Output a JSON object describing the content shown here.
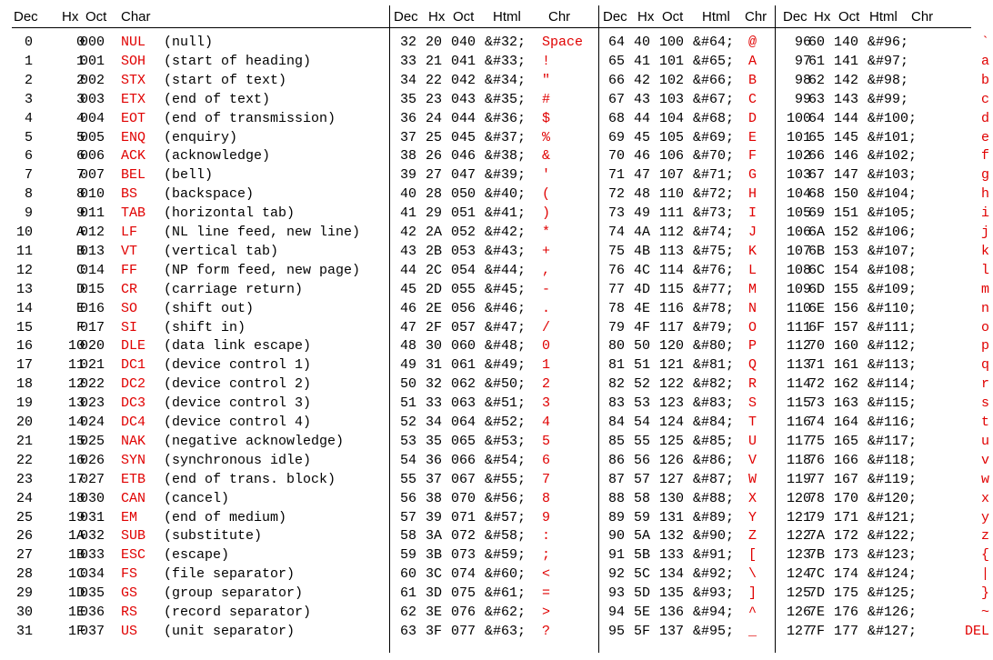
{
  "headers": {
    "s1": {
      "dec": "Dec",
      "hx": "Hx",
      "oct": "Oct",
      "char": "Char"
    },
    "s2": {
      "dec": "Dec",
      "hx": "Hx",
      "oct": "Oct",
      "html": "Html",
      "chr": "Chr"
    },
    "s3": {
      "dec": "Dec",
      "hx": "Hx",
      "oct": "Oct",
      "html": "Html",
      "chr": "Chr"
    },
    "s4": {
      "dec": "Dec",
      "hx": "Hx",
      "oct": "Oct",
      "html": "Html",
      "chr": "Chr"
    }
  },
  "control_rows": [
    {
      "dec": "0",
      "hx": "0",
      "oct": "000",
      "abbr": "NUL",
      "desc": "(null)"
    },
    {
      "dec": "1",
      "hx": "1",
      "oct": "001",
      "abbr": "SOH",
      "desc": "(start of heading)"
    },
    {
      "dec": "2",
      "hx": "2",
      "oct": "002",
      "abbr": "STX",
      "desc": "(start of text)"
    },
    {
      "dec": "3",
      "hx": "3",
      "oct": "003",
      "abbr": "ETX",
      "desc": "(end of text)"
    },
    {
      "dec": "4",
      "hx": "4",
      "oct": "004",
      "abbr": "EOT",
      "desc": "(end of transmission)"
    },
    {
      "dec": "5",
      "hx": "5",
      "oct": "005",
      "abbr": "ENQ",
      "desc": "(enquiry)"
    },
    {
      "dec": "6",
      "hx": "6",
      "oct": "006",
      "abbr": "ACK",
      "desc": "(acknowledge)"
    },
    {
      "dec": "7",
      "hx": "7",
      "oct": "007",
      "abbr": "BEL",
      "desc": "(bell)"
    },
    {
      "dec": "8",
      "hx": "8",
      "oct": "010",
      "abbr": "BS",
      "desc": "(backspace)"
    },
    {
      "dec": "9",
      "hx": "9",
      "oct": "011",
      "abbr": "TAB",
      "desc": "(horizontal tab)"
    },
    {
      "dec": "10",
      "hx": "A",
      "oct": "012",
      "abbr": "LF",
      "desc": "(NL line feed, new line)"
    },
    {
      "dec": "11",
      "hx": "B",
      "oct": "013",
      "abbr": "VT",
      "desc": "(vertical tab)"
    },
    {
      "dec": "12",
      "hx": "C",
      "oct": "014",
      "abbr": "FF",
      "desc": "(NP form feed, new page)"
    },
    {
      "dec": "13",
      "hx": "D",
      "oct": "015",
      "abbr": "CR",
      "desc": "(carriage return)"
    },
    {
      "dec": "14",
      "hx": "E",
      "oct": "016",
      "abbr": "SO",
      "desc": "(shift out)"
    },
    {
      "dec": "15",
      "hx": "F",
      "oct": "017",
      "abbr": "SI",
      "desc": "(shift in)"
    },
    {
      "dec": "16",
      "hx": "10",
      "oct": "020",
      "abbr": "DLE",
      "desc": "(data link escape)"
    },
    {
      "dec": "17",
      "hx": "11",
      "oct": "021",
      "abbr": "DC1",
      "desc": "(device control 1)"
    },
    {
      "dec": "18",
      "hx": "12",
      "oct": "022",
      "abbr": "DC2",
      "desc": "(device control 2)"
    },
    {
      "dec": "19",
      "hx": "13",
      "oct": "023",
      "abbr": "DC3",
      "desc": "(device control 3)"
    },
    {
      "dec": "20",
      "hx": "14",
      "oct": "024",
      "abbr": "DC4",
      "desc": "(device control 4)"
    },
    {
      "dec": "21",
      "hx": "15",
      "oct": "025",
      "abbr": "NAK",
      "desc": "(negative acknowledge)"
    },
    {
      "dec": "22",
      "hx": "16",
      "oct": "026",
      "abbr": "SYN",
      "desc": "(synchronous idle)"
    },
    {
      "dec": "23",
      "hx": "17",
      "oct": "027",
      "abbr": "ETB",
      "desc": "(end of trans. block)"
    },
    {
      "dec": "24",
      "hx": "18",
      "oct": "030",
      "abbr": "CAN",
      "desc": "(cancel)"
    },
    {
      "dec": "25",
      "hx": "19",
      "oct": "031",
      "abbr": "EM",
      "desc": "(end of medium)"
    },
    {
      "dec": "26",
      "hx": "1A",
      "oct": "032",
      "abbr": "SUB",
      "desc": "(substitute)"
    },
    {
      "dec": "27",
      "hx": "1B",
      "oct": "033",
      "abbr": "ESC",
      "desc": "(escape)"
    },
    {
      "dec": "28",
      "hx": "1C",
      "oct": "034",
      "abbr": "FS",
      "desc": "(file separator)"
    },
    {
      "dec": "29",
      "hx": "1D",
      "oct": "035",
      "abbr": "GS",
      "desc": "(group separator)"
    },
    {
      "dec": "30",
      "hx": "1E",
      "oct": "036",
      "abbr": "RS",
      "desc": "(record separator)"
    },
    {
      "dec": "31",
      "hx": "1F",
      "oct": "037",
      "abbr": "US",
      "desc": "(unit separator)"
    }
  ],
  "section2_rows": [
    {
      "dec": "32",
      "hx": "20",
      "oct": "040",
      "html": "&#32;",
      "chr": "Space"
    },
    {
      "dec": "33",
      "hx": "21",
      "oct": "041",
      "html": "&#33;",
      "chr": "!"
    },
    {
      "dec": "34",
      "hx": "22",
      "oct": "042",
      "html": "&#34;",
      "chr": "\""
    },
    {
      "dec": "35",
      "hx": "23",
      "oct": "043",
      "html": "&#35;",
      "chr": "#"
    },
    {
      "dec": "36",
      "hx": "24",
      "oct": "044",
      "html": "&#36;",
      "chr": "$"
    },
    {
      "dec": "37",
      "hx": "25",
      "oct": "045",
      "html": "&#37;",
      "chr": "%"
    },
    {
      "dec": "38",
      "hx": "26",
      "oct": "046",
      "html": "&#38;",
      "chr": "&"
    },
    {
      "dec": "39",
      "hx": "27",
      "oct": "047",
      "html": "&#39;",
      "chr": "'"
    },
    {
      "dec": "40",
      "hx": "28",
      "oct": "050",
      "html": "&#40;",
      "chr": "("
    },
    {
      "dec": "41",
      "hx": "29",
      "oct": "051",
      "html": "&#41;",
      "chr": ")"
    },
    {
      "dec": "42",
      "hx": "2A",
      "oct": "052",
      "html": "&#42;",
      "chr": "*"
    },
    {
      "dec": "43",
      "hx": "2B",
      "oct": "053",
      "html": "&#43;",
      "chr": "+"
    },
    {
      "dec": "44",
      "hx": "2C",
      "oct": "054",
      "html": "&#44;",
      "chr": ","
    },
    {
      "dec": "45",
      "hx": "2D",
      "oct": "055",
      "html": "&#45;",
      "chr": "-"
    },
    {
      "dec": "46",
      "hx": "2E",
      "oct": "056",
      "html": "&#46;",
      "chr": "."
    },
    {
      "dec": "47",
      "hx": "2F",
      "oct": "057",
      "html": "&#47;",
      "chr": "/"
    },
    {
      "dec": "48",
      "hx": "30",
      "oct": "060",
      "html": "&#48;",
      "chr": "0"
    },
    {
      "dec": "49",
      "hx": "31",
      "oct": "061",
      "html": "&#49;",
      "chr": "1"
    },
    {
      "dec": "50",
      "hx": "32",
      "oct": "062",
      "html": "&#50;",
      "chr": "2"
    },
    {
      "dec": "51",
      "hx": "33",
      "oct": "063",
      "html": "&#51;",
      "chr": "3"
    },
    {
      "dec": "52",
      "hx": "34",
      "oct": "064",
      "html": "&#52;",
      "chr": "4"
    },
    {
      "dec": "53",
      "hx": "35",
      "oct": "065",
      "html": "&#53;",
      "chr": "5"
    },
    {
      "dec": "54",
      "hx": "36",
      "oct": "066",
      "html": "&#54;",
      "chr": "6"
    },
    {
      "dec": "55",
      "hx": "37",
      "oct": "067",
      "html": "&#55;",
      "chr": "7"
    },
    {
      "dec": "56",
      "hx": "38",
      "oct": "070",
      "html": "&#56;",
      "chr": "8"
    },
    {
      "dec": "57",
      "hx": "39",
      "oct": "071",
      "html": "&#57;",
      "chr": "9"
    },
    {
      "dec": "58",
      "hx": "3A",
      "oct": "072",
      "html": "&#58;",
      "chr": ":"
    },
    {
      "dec": "59",
      "hx": "3B",
      "oct": "073",
      "html": "&#59;",
      "chr": ";"
    },
    {
      "dec": "60",
      "hx": "3C",
      "oct": "074",
      "html": "&#60;",
      "chr": "<"
    },
    {
      "dec": "61",
      "hx": "3D",
      "oct": "075",
      "html": "&#61;",
      "chr": "="
    },
    {
      "dec": "62",
      "hx": "3E",
      "oct": "076",
      "html": "&#62;",
      "chr": ">"
    },
    {
      "dec": "63",
      "hx": "3F",
      "oct": "077",
      "html": "&#63;",
      "chr": "?"
    }
  ],
  "section3_rows": [
    {
      "dec": "64",
      "hx": "40",
      "oct": "100",
      "html": "&#64;",
      "chr": "@"
    },
    {
      "dec": "65",
      "hx": "41",
      "oct": "101",
      "html": "&#65;",
      "chr": "A"
    },
    {
      "dec": "66",
      "hx": "42",
      "oct": "102",
      "html": "&#66;",
      "chr": "B"
    },
    {
      "dec": "67",
      "hx": "43",
      "oct": "103",
      "html": "&#67;",
      "chr": "C"
    },
    {
      "dec": "68",
      "hx": "44",
      "oct": "104",
      "html": "&#68;",
      "chr": "D"
    },
    {
      "dec": "69",
      "hx": "45",
      "oct": "105",
      "html": "&#69;",
      "chr": "E"
    },
    {
      "dec": "70",
      "hx": "46",
      "oct": "106",
      "html": "&#70;",
      "chr": "F"
    },
    {
      "dec": "71",
      "hx": "47",
      "oct": "107",
      "html": "&#71;",
      "chr": "G"
    },
    {
      "dec": "72",
      "hx": "48",
      "oct": "110",
      "html": "&#72;",
      "chr": "H"
    },
    {
      "dec": "73",
      "hx": "49",
      "oct": "111",
      "html": "&#73;",
      "chr": "I"
    },
    {
      "dec": "74",
      "hx": "4A",
      "oct": "112",
      "html": "&#74;",
      "chr": "J"
    },
    {
      "dec": "75",
      "hx": "4B",
      "oct": "113",
      "html": "&#75;",
      "chr": "K"
    },
    {
      "dec": "76",
      "hx": "4C",
      "oct": "114",
      "html": "&#76;",
      "chr": "L"
    },
    {
      "dec": "77",
      "hx": "4D",
      "oct": "115",
      "html": "&#77;",
      "chr": "M"
    },
    {
      "dec": "78",
      "hx": "4E",
      "oct": "116",
      "html": "&#78;",
      "chr": "N"
    },
    {
      "dec": "79",
      "hx": "4F",
      "oct": "117",
      "html": "&#79;",
      "chr": "O"
    },
    {
      "dec": "80",
      "hx": "50",
      "oct": "120",
      "html": "&#80;",
      "chr": "P"
    },
    {
      "dec": "81",
      "hx": "51",
      "oct": "121",
      "html": "&#81;",
      "chr": "Q"
    },
    {
      "dec": "82",
      "hx": "52",
      "oct": "122",
      "html": "&#82;",
      "chr": "R"
    },
    {
      "dec": "83",
      "hx": "53",
      "oct": "123",
      "html": "&#83;",
      "chr": "S"
    },
    {
      "dec": "84",
      "hx": "54",
      "oct": "124",
      "html": "&#84;",
      "chr": "T"
    },
    {
      "dec": "85",
      "hx": "55",
      "oct": "125",
      "html": "&#85;",
      "chr": "U"
    },
    {
      "dec": "86",
      "hx": "56",
      "oct": "126",
      "html": "&#86;",
      "chr": "V"
    },
    {
      "dec": "87",
      "hx": "57",
      "oct": "127",
      "html": "&#87;",
      "chr": "W"
    },
    {
      "dec": "88",
      "hx": "58",
      "oct": "130",
      "html": "&#88;",
      "chr": "X"
    },
    {
      "dec": "89",
      "hx": "59",
      "oct": "131",
      "html": "&#89;",
      "chr": "Y"
    },
    {
      "dec": "90",
      "hx": "5A",
      "oct": "132",
      "html": "&#90;",
      "chr": "Z"
    },
    {
      "dec": "91",
      "hx": "5B",
      "oct": "133",
      "html": "&#91;",
      "chr": "["
    },
    {
      "dec": "92",
      "hx": "5C",
      "oct": "134",
      "html": "&#92;",
      "chr": "\\"
    },
    {
      "dec": "93",
      "hx": "5D",
      "oct": "135",
      "html": "&#93;",
      "chr": "]"
    },
    {
      "dec": "94",
      "hx": "5E",
      "oct": "136",
      "html": "&#94;",
      "chr": "^"
    },
    {
      "dec": "95",
      "hx": "5F",
      "oct": "137",
      "html": "&#95;",
      "chr": "_"
    }
  ],
  "section4_rows": [
    {
      "dec": "96",
      "hx": "60",
      "oct": "140",
      "html": "&#96;",
      "chr": "`"
    },
    {
      "dec": "97",
      "hx": "61",
      "oct": "141",
      "html": "&#97;",
      "chr": "a"
    },
    {
      "dec": "98",
      "hx": "62",
      "oct": "142",
      "html": "&#98;",
      "chr": "b"
    },
    {
      "dec": "99",
      "hx": "63",
      "oct": "143",
      "html": "&#99;",
      "chr": "c"
    },
    {
      "dec": "100",
      "hx": "64",
      "oct": "144",
      "html": "&#100;",
      "chr": "d"
    },
    {
      "dec": "101",
      "hx": "65",
      "oct": "145",
      "html": "&#101;",
      "chr": "e"
    },
    {
      "dec": "102",
      "hx": "66",
      "oct": "146",
      "html": "&#102;",
      "chr": "f"
    },
    {
      "dec": "103",
      "hx": "67",
      "oct": "147",
      "html": "&#103;",
      "chr": "g"
    },
    {
      "dec": "104",
      "hx": "68",
      "oct": "150",
      "html": "&#104;",
      "chr": "h"
    },
    {
      "dec": "105",
      "hx": "69",
      "oct": "151",
      "html": "&#105;",
      "chr": "i"
    },
    {
      "dec": "106",
      "hx": "6A",
      "oct": "152",
      "html": "&#106;",
      "chr": "j"
    },
    {
      "dec": "107",
      "hx": "6B",
      "oct": "153",
      "html": "&#107;",
      "chr": "k"
    },
    {
      "dec": "108",
      "hx": "6C",
      "oct": "154",
      "html": "&#108;",
      "chr": "l"
    },
    {
      "dec": "109",
      "hx": "6D",
      "oct": "155",
      "html": "&#109;",
      "chr": "m"
    },
    {
      "dec": "110",
      "hx": "6E",
      "oct": "156",
      "html": "&#110;",
      "chr": "n"
    },
    {
      "dec": "111",
      "hx": "6F",
      "oct": "157",
      "html": "&#111;",
      "chr": "o"
    },
    {
      "dec": "112",
      "hx": "70",
      "oct": "160",
      "html": "&#112;",
      "chr": "p"
    },
    {
      "dec": "113",
      "hx": "71",
      "oct": "161",
      "html": "&#113;",
      "chr": "q"
    },
    {
      "dec": "114",
      "hx": "72",
      "oct": "162",
      "html": "&#114;",
      "chr": "r"
    },
    {
      "dec": "115",
      "hx": "73",
      "oct": "163",
      "html": "&#115;",
      "chr": "s"
    },
    {
      "dec": "116",
      "hx": "74",
      "oct": "164",
      "html": "&#116;",
      "chr": "t"
    },
    {
      "dec": "117",
      "hx": "75",
      "oct": "165",
      "html": "&#117;",
      "chr": "u"
    },
    {
      "dec": "118",
      "hx": "76",
      "oct": "166",
      "html": "&#118;",
      "chr": "v"
    },
    {
      "dec": "119",
      "hx": "77",
      "oct": "167",
      "html": "&#119;",
      "chr": "w"
    },
    {
      "dec": "120",
      "hx": "78",
      "oct": "170",
      "html": "&#120;",
      "chr": "x"
    },
    {
      "dec": "121",
      "hx": "79",
      "oct": "171",
      "html": "&#121;",
      "chr": "y"
    },
    {
      "dec": "122",
      "hx": "7A",
      "oct": "172",
      "html": "&#122;",
      "chr": "z"
    },
    {
      "dec": "123",
      "hx": "7B",
      "oct": "173",
      "html": "&#123;",
      "chr": "{"
    },
    {
      "dec": "124",
      "hx": "7C",
      "oct": "174",
      "html": "&#124;",
      "chr": "|"
    },
    {
      "dec": "125",
      "hx": "7D",
      "oct": "175",
      "html": "&#125;",
      "chr": "}"
    },
    {
      "dec": "126",
      "hx": "7E",
      "oct": "176",
      "html": "&#126;",
      "chr": "~"
    },
    {
      "dec": "127",
      "hx": "7F",
      "oct": "177",
      "html": "&#127;",
      "chr": "DEL"
    }
  ],
  "colors": {
    "highlight": "#e00000",
    "text": "#000000",
    "rule": "#000000"
  }
}
